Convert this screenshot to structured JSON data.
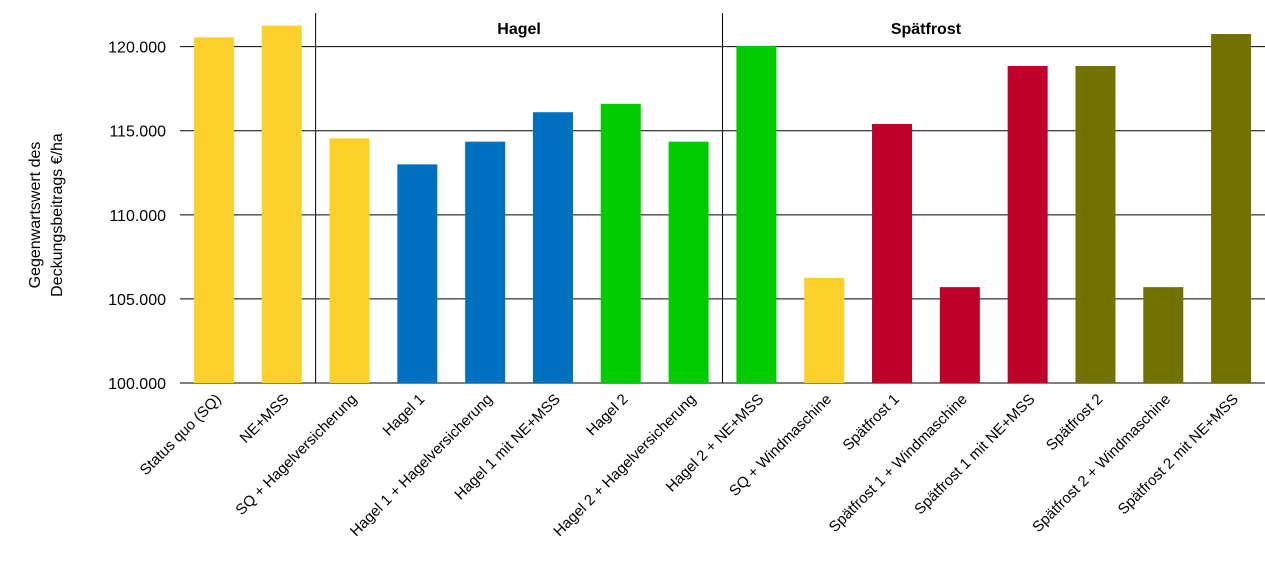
{
  "chart_data": {
    "type": "bar",
    "ylabel_lines": [
      "Gegenwartswert des",
      "Deckungsbeitrags €/ha"
    ],
    "ylim": [
      100000,
      122000
    ],
    "yticks": [
      100000,
      105000,
      110000,
      115000,
      120000
    ],
    "ytick_labels": [
      "100.000",
      "105.000",
      "110.000",
      "115.000",
      "120.000"
    ],
    "grid": "horizontal",
    "groups": [
      {
        "label": "",
        "start": 0,
        "end": 1
      },
      {
        "label": "Hagel",
        "start": 2,
        "end": 7
      },
      {
        "label": "Spätfrost",
        "start": 8,
        "end": 13
      }
    ],
    "categories": [
      "Status quo (SQ)",
      "NE+MSS",
      "SQ + Hagelversicherung",
      "Hagel 1",
      "Hagel 1 + Hagelversicherung",
      "Hagel 1 mit NE+MSS",
      "Hagel 2",
      "Hagel 2 + Hagelversicherung",
      "Hagel 2 + NE+MSS",
      "SQ + Windmaschine",
      "Spätfrost 1",
      "Spätfrost 1 + Windmaschine",
      "Spätfrost 1 mit NE+MSS",
      "Spätfrost 2",
      "Spätfrost 2 + Windmaschine",
      "Spätfrost 2 mit NE+MSS"
    ],
    "values": [
      120550,
      121250,
      114550,
      113000,
      114350,
      116100,
      116600,
      114350,
      120050,
      106250,
      115400,
      105700,
      118850,
      118850,
      105700,
      120750
    ],
    "colors": [
      "#FBD02A",
      "#FBD02A",
      "#FBD02A",
      "#0070C0",
      "#0070C0",
      "#0070C0",
      "#00CC00",
      "#00CC00",
      "#00CC00",
      "#FBD02A",
      "#C00028",
      "#C00028",
      "#C00028",
      "#727200",
      "#727200",
      "#727200"
    ]
  }
}
